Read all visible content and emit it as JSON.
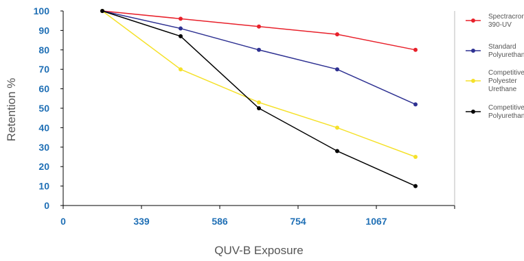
{
  "chart_data": {
    "type": "line",
    "xlabel": "QUV-B Exposure",
    "ylabel": "Retention %",
    "ylim": [
      0,
      100
    ],
    "yticks": [
      "0",
      "10",
      "20",
      "30",
      "40",
      "50",
      "60",
      "70",
      "80",
      "90",
      "100"
    ],
    "xticks": [
      "0",
      "339",
      "586",
      "754",
      "1067"
    ],
    "tick_color": "#1f6fb5",
    "grid": false,
    "legend_position": "right",
    "series": [
      {
        "name_lines": [
          "Spectracron",
          "390-UV"
        ],
        "color": "#e8202a",
        "points": [
          [
            0.5,
            100
          ],
          [
            1.5,
            96
          ],
          [
            2.5,
            92
          ],
          [
            3.5,
            88
          ],
          [
            4.5,
            80
          ]
        ]
      },
      {
        "name_lines": [
          "Standard",
          "Polyurethane"
        ],
        "color": "#2e3192",
        "points": [
          [
            0.5,
            100
          ],
          [
            1.5,
            91
          ],
          [
            2.5,
            80
          ],
          [
            3.5,
            70
          ],
          [
            4.5,
            52
          ]
        ]
      },
      {
        "name_lines": [
          "Competitive",
          "Polyester",
          "Urethane"
        ],
        "color": "#f5e12a",
        "points": [
          [
            0.5,
            100
          ],
          [
            1.5,
            70
          ],
          [
            2.5,
            53
          ],
          [
            3.5,
            40
          ],
          [
            4.5,
            25
          ]
        ]
      },
      {
        "name_lines": [
          "Competitive",
          "Polyurethane"
        ],
        "color": "#000000",
        "points": [
          [
            0.5,
            100
          ],
          [
            1.5,
            87
          ],
          [
            2.5,
            50
          ],
          [
            3.5,
            28
          ],
          [
            4.5,
            10
          ]
        ]
      }
    ]
  }
}
